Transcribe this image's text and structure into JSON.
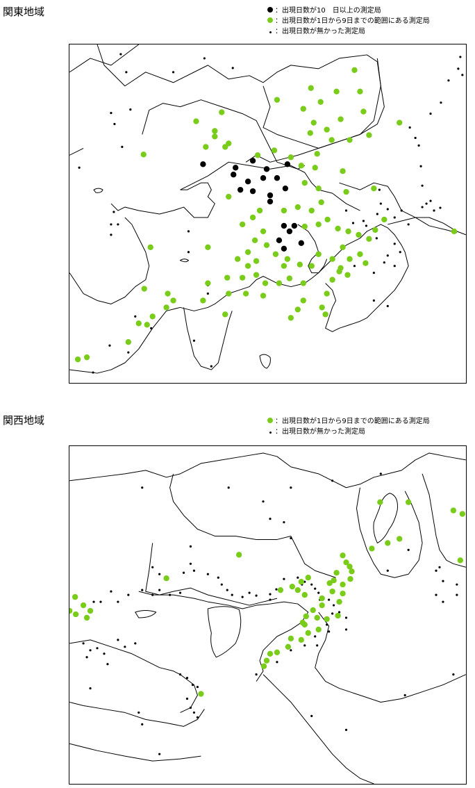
{
  "kanto": {
    "title": "関東地域",
    "legend": [
      {
        "label": "：出現日数が10　日以上の測定局",
        "category": "high",
        "color": "#000000"
      },
      {
        "label": "：出現日数が1日から9日までの範囲にある測定局",
        "category": "mid",
        "color": "#7acc1a"
      },
      {
        "label": "：出現日数が無かった測定局",
        "category": "none",
        "color": "#000000"
      }
    ]
  },
  "kansai": {
    "title": "関西地域",
    "legend": [
      {
        "label": "：出現日数が1日から9日までの範囲にある測定局",
        "category": "mid",
        "color": "#7acc1a"
      },
      {
        "label": "：出現日数が無かった測定局",
        "category": "none",
        "color": "#000000"
      }
    ]
  },
  "colors": {
    "mid": "#7acc1a",
    "high": "#000000",
    "none": "#000000",
    "line": "#000000"
  }
}
